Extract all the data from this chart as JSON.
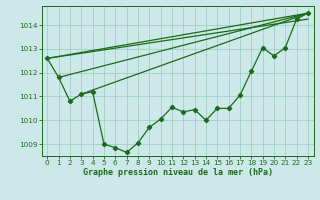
{
  "title": "Graphe pression niveau de la mer (hPa)",
  "bg_color": "#cce8e8",
  "grid_color": "#99ccbb",
  "line_color": "#1a6b1a",
  "marker_color": "#1a6b1a",
  "jagged": [
    1012.6,
    1011.8,
    1010.8,
    1011.1,
    1011.2,
    1009.0,
    1008.85,
    1008.65,
    1009.05,
    1009.7,
    1010.05,
    1010.55,
    1010.35,
    1010.45,
    1010.0,
    1010.5,
    1010.5,
    1011.05,
    1012.05,
    1013.05,
    1012.7,
    1013.05,
    1014.25,
    1014.5
  ],
  "straight_lines": [
    {
      "x": [
        0,
        23
      ],
      "y": [
        1012.6,
        1014.5
      ]
    },
    {
      "x": [
        0,
        23
      ],
      "y": [
        1012.6,
        1014.25
      ]
    },
    {
      "x": [
        1,
        23
      ],
      "y": [
        1011.8,
        1014.5
      ]
    },
    {
      "x": [
        3,
        23
      ],
      "y": [
        1011.1,
        1014.5
      ]
    }
  ],
  "ylim": [
    1008.5,
    1014.8
  ],
  "yticks": [
    1009,
    1010,
    1011,
    1012,
    1013,
    1014
  ],
  "xlim": [
    -0.5,
    23.5
  ],
  "xticks": [
    0,
    1,
    2,
    3,
    4,
    5,
    6,
    7,
    8,
    9,
    10,
    11,
    12,
    13,
    14,
    15,
    16,
    17,
    18,
    19,
    20,
    21,
    22,
    23
  ],
  "title_fontsize": 6.0,
  "tick_fontsize": 5.2,
  "figsize": [
    3.2,
    2.0
  ],
  "dpi": 100
}
